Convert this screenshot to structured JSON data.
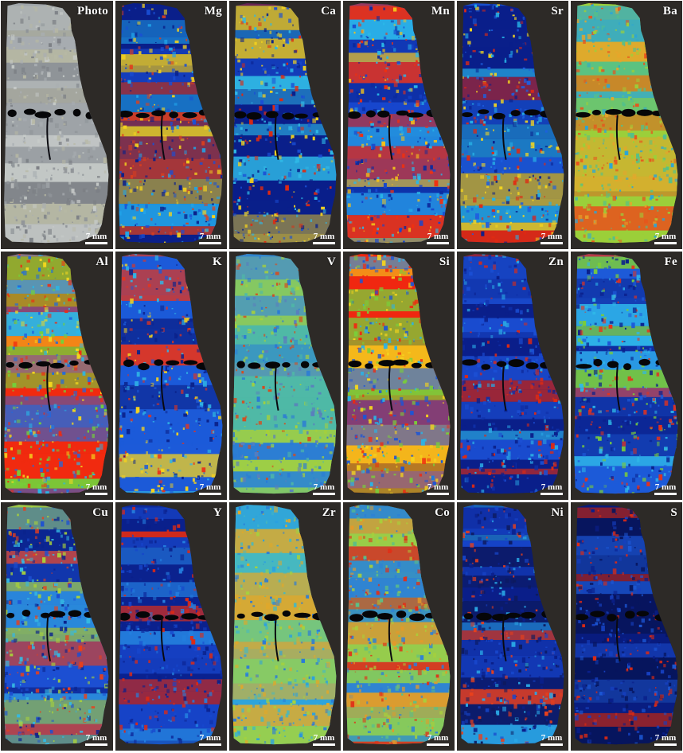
{
  "panels": [
    {
      "label": "Photo",
      "scale": "7 mm",
      "palette": [
        "#8f9498",
        "#a9aeb2",
        "#c7cbc9",
        "#b7b8a4",
        "#7c8085"
      ]
    },
    {
      "label": "Mg",
      "scale": "7 mm",
      "palette": [
        "#0a1f8a",
        "#1a4fd6",
        "#21a3e8",
        "#e0401c",
        "#f4d21e"
      ]
    },
    {
      "label": "Ca",
      "scale": "7 mm",
      "palette": [
        "#0a1f8a",
        "#1a4fd6",
        "#2fb8e6",
        "#f0d020",
        "#e02a10"
      ]
    },
    {
      "label": "Mn",
      "scale": "7 mm",
      "palette": [
        "#1746cc",
        "#2bb8e8",
        "#f03010",
        "#f3c21a",
        "#0b2a9e"
      ]
    },
    {
      "label": "Sr",
      "scale": "7 mm",
      "palette": [
        "#0a1f8a",
        "#1d5fe0",
        "#e02a12",
        "#27b2e6",
        "#f5d61f"
      ]
    },
    {
      "label": "Ba",
      "scale": "7 mm",
      "palette": [
        "#9bcf3a",
        "#e6a52b",
        "#54c08a",
        "#e8521c",
        "#2aa5d8"
      ]
    },
    {
      "label": "Al",
      "scale": "7 mm",
      "palette": [
        "#f02a10",
        "#f4d81e",
        "#73d13a",
        "#1f6ae0",
        "#28b8e8"
      ]
    },
    {
      "label": "K",
      "scale": "7 mm",
      "palette": [
        "#1c5ad8",
        "#2fb5e6",
        "#f5d21e",
        "#e8341a",
        "#0b238c"
      ]
    },
    {
      "label": "V",
      "scale": "7 mm",
      "palette": [
        "#4fb9a6",
        "#2a7ad6",
        "#a5d03c",
        "#d84a1c",
        "#5a7ebd"
      ]
    },
    {
      "label": "Si",
      "scale": "7 mm",
      "palette": [
        "#f02810",
        "#f4d41e",
        "#2ab3e6",
        "#1a55d8",
        "#7acd3a"
      ]
    },
    {
      "label": "Zn",
      "scale": "7 mm",
      "palette": [
        "#0a1f8a",
        "#1b4fd4",
        "#2aa7e3",
        "#0f2fa8",
        "#e02a12"
      ]
    },
    {
      "label": "Fe",
      "scale": "7 mm",
      "palette": [
        "#1d5ad8",
        "#2fb8e8",
        "#0a208c",
        "#e8321a",
        "#7bcc3a"
      ]
    },
    {
      "label": "Cu",
      "scale": "7 mm",
      "palette": [
        "#1c4fd2",
        "#35b9e2",
        "#a9d23a",
        "#e8401c",
        "#0a228c"
      ]
    },
    {
      "label": "Y",
      "scale": "7 mm",
      "palette": [
        "#0e2a9c",
        "#1746cc",
        "#2480e0",
        "#0a1f8a",
        "#e02a12"
      ]
    },
    {
      "label": "Zr",
      "scale": "7 mm",
      "palette": [
        "#46b8c0",
        "#a5d23c",
        "#2a7ad8",
        "#e0a82a",
        "#2aa0e0"
      ]
    },
    {
      "label": "Co",
      "scale": "7 mm",
      "palette": [
        "#5cbf86",
        "#a8d03a",
        "#e29a2a",
        "#2c7fd8",
        "#e03018"
      ]
    },
    {
      "label": "Ni",
      "scale": "7 mm",
      "palette": [
        "#0a1f8a",
        "#1746cc",
        "#2aa8e6",
        "#e8401c",
        "#0d1a5e"
      ]
    },
    {
      "label": "S",
      "scale": "7 mm",
      "palette": [
        "#07155e",
        "#0a1f8a",
        "#1640c0",
        "#1c57d6",
        "#e02a12"
      ]
    }
  ]
}
